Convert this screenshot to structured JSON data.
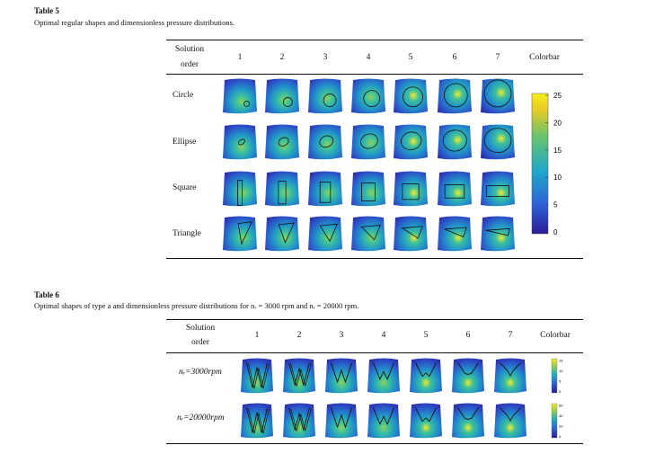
{
  "table5": {
    "label": "Table 5",
    "caption": "Optimal regular shapes and dimensionless pressure distributions.",
    "header": {
      "solution": "Solution",
      "order": "order",
      "colorbar": "Colorbar"
    },
    "columns": [
      "1",
      "2",
      "3",
      "4",
      "5",
      "6",
      "7"
    ],
    "rows": [
      {
        "label": "Circle",
        "shape": "circle"
      },
      {
        "label": "Ellipse",
        "shape": "ellipse"
      },
      {
        "label": "Square",
        "shape": "square"
      },
      {
        "label": "Triangle",
        "shape": "triangle"
      }
    ],
    "colorbar_ticks": [
      "25",
      "20",
      "15",
      "10",
      "5",
      "0"
    ]
  },
  "table6": {
    "label": "Table 6",
    "caption": "Optimal shapes of type a and dimensionless pressure distributions for nᵣ = 3000 rpm and nᵣ = 20000 rpm.",
    "header": {
      "solution": "Solution",
      "order": "order",
      "colorbar": "Colorbar"
    },
    "columns": [
      "1",
      "2",
      "3",
      "4",
      "5",
      "6",
      "7"
    ],
    "rows": [
      {
        "label": "nᵣ=3000rpm",
        "colorbar_ticks": [
          "15",
          "10",
          "5",
          "0"
        ]
      },
      {
        "label": "nᵣ=20000rpm",
        "colorbar_ticks": [
          "60",
          "40",
          "20",
          "0"
        ]
      }
    ]
  },
  "colors": {
    "low": "#2f1fa0",
    "mid": "#1fb0b8",
    "high": "#f5e31a"
  }
}
